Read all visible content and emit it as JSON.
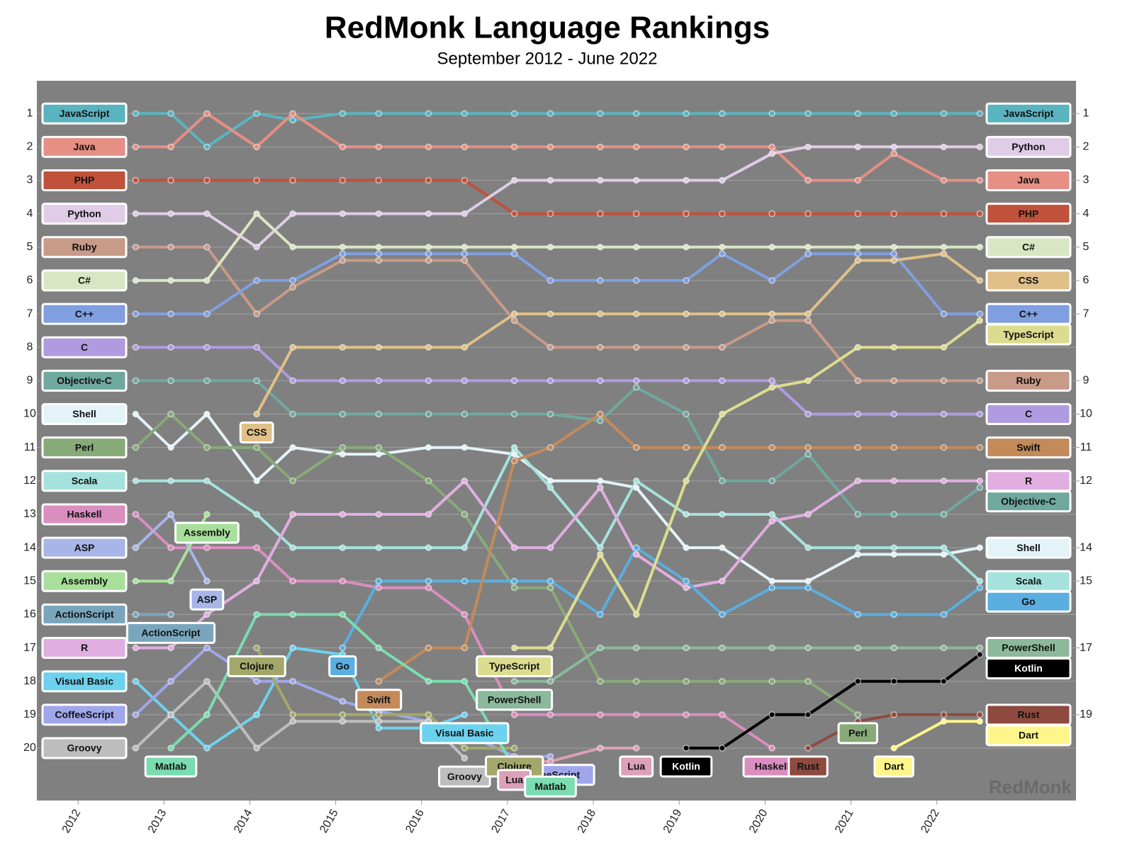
{
  "chart_data": {
    "type": "bump",
    "title": "RedMonk Language Rankings",
    "subtitle": "September 2012 - June 2022",
    "watermark": "RedMonk",
    "x": [
      2012.67,
      2013.08,
      2013.5,
      2014.08,
      2014.5,
      2015.08,
      2015.5,
      2016.08,
      2016.5,
      2017.08,
      2017.5,
      2018.08,
      2018.5,
      2019.08,
      2019.5,
      2020.08,
      2020.5,
      2021.08,
      2021.5,
      2022.08,
      2022.5
    ],
    "xlim": [
      2011.52,
      2023.62
    ],
    "xticks": [
      2012,
      2013,
      2014,
      2015,
      2016,
      2017,
      2018,
      2019,
      2020,
      2021,
      2022
    ],
    "ylim": [
      21.57,
      0.02
    ],
    "yticks": [
      1,
      2,
      3,
      4,
      5,
      6,
      7,
      8,
      9,
      10,
      11,
      12,
      13,
      14,
      15,
      16,
      17,
      18,
      19,
      20
    ],
    "y2lim": [
      21.57,
      0.02
    ],
    "y2ticks": [
      1,
      2,
      3,
      4,
      5,
      6,
      7,
      9,
      10,
      11,
      12,
      14,
      15,
      17,
      19
    ],
    "grid": true,
    "series": [
      {
        "name": "JavaScript",
        "color": "#5ab4c0",
        "values": [
          1,
          1,
          2,
          1,
          1.2,
          1,
          1,
          1,
          1,
          1,
          1,
          1,
          1,
          1,
          1,
          1,
          1,
          1,
          1,
          1,
          1
        ]
      },
      {
        "name": "Java",
        "color": "#e58f85",
        "values": [
          2,
          2,
          1,
          2,
          1,
          2,
          2,
          2,
          2,
          2,
          2,
          2,
          2,
          2,
          2,
          2,
          3,
          3,
          2.2,
          3,
          3
        ]
      },
      {
        "name": "PHP",
        "color": "#c0513a",
        "values": [
          3,
          3,
          3,
          3,
          3,
          3,
          3,
          3,
          3,
          4,
          4,
          4,
          4,
          4,
          4,
          4,
          4,
          4,
          4,
          4,
          4
        ]
      },
      {
        "name": "Python",
        "color": "#e0cce6",
        "values": [
          4,
          4,
          4,
          5,
          4,
          4,
          4,
          4,
          4,
          3,
          3,
          3,
          3,
          3,
          3,
          2.2,
          2,
          2,
          2,
          2,
          2
        ]
      },
      {
        "name": "Ruby",
        "color": "#c89a88",
        "values": [
          5,
          5,
          5,
          7,
          6.2,
          5.4,
          5.4,
          5.4,
          5.4,
          7.2,
          8,
          8,
          8,
          8,
          8,
          7.2,
          7.2,
          9,
          9,
          9,
          9
        ]
      },
      {
        "name": "C#",
        "color": "#d9e6c4",
        "values": [
          6,
          6,
          6,
          4,
          5,
          5,
          5,
          5,
          5,
          5,
          5,
          5,
          5,
          5,
          5,
          5,
          5,
          5,
          5,
          5,
          5
        ]
      },
      {
        "name": "C++",
        "color": "#7f9fe0",
        "values": [
          7,
          7,
          7,
          6,
          6,
          5.2,
          5.2,
          5.2,
          5.2,
          5.2,
          6,
          6,
          6,
          6,
          5.2,
          6,
          5.2,
          5.2,
          5.2,
          7,
          7
        ]
      },
      {
        "name": "C",
        "color": "#b09be0",
        "values": [
          8,
          8,
          8,
          8,
          9,
          9,
          9,
          9,
          9,
          9,
          9,
          9,
          9,
          9,
          9,
          9,
          10,
          10,
          10,
          10,
          10
        ]
      },
      {
        "name": "Objective-C",
        "color": "#6fa89e",
        "values": [
          9,
          9,
          9,
          9,
          10,
          10,
          10,
          10,
          10,
          10,
          10,
          10.2,
          9.2,
          10,
          12,
          12,
          11.2,
          13,
          13,
          13,
          12.2
        ]
      },
      {
        "name": "Shell",
        "color": "#e3f3f8",
        "values": [
          10,
          11,
          10,
          12,
          11,
          11.2,
          11.2,
          11,
          11,
          11.2,
          12,
          12,
          12.2,
          14,
          14,
          15,
          15,
          14.2,
          14.2,
          14.2,
          14
        ]
      },
      {
        "name": "Perl",
        "color": "#88aa78",
        "values": [
          11,
          10,
          11,
          11,
          12,
          11,
          11,
          12,
          13,
          15.2,
          15.2,
          18,
          18,
          18,
          18,
          18,
          18,
          19,
          null,
          null,
          null
        ]
      },
      {
        "name": "Scala",
        "color": "#a5e2dd",
        "values": [
          12,
          12,
          12,
          13,
          14,
          14,
          14,
          14,
          14,
          11,
          12.2,
          14,
          12,
          13,
          13,
          13,
          14,
          14,
          14,
          14,
          15
        ]
      },
      {
        "name": "Haskell",
        "color": "#da8ec0",
        "values": [
          13,
          14,
          14,
          14,
          15,
          15,
          15.2,
          15.2,
          16,
          19,
          19,
          19,
          19,
          19,
          19,
          20,
          null,
          null,
          null,
          null,
          null
        ]
      },
      {
        "name": "ASP",
        "color": "#a7b5e8",
        "values": [
          14,
          13,
          15,
          null,
          null,
          null,
          null,
          null,
          null,
          null,
          null,
          null,
          null,
          null,
          null,
          null,
          null,
          null,
          null,
          null,
          null
        ]
      },
      {
        "name": "Assembly",
        "color": "#a8e09b",
        "values": [
          15,
          15,
          13,
          null,
          null,
          null,
          null,
          null,
          null,
          null,
          null,
          null,
          null,
          null,
          null,
          null,
          null,
          null,
          null,
          null,
          null
        ]
      },
      {
        "name": "ActionScript",
        "color": "#7aa6bd",
        "values": [
          16,
          16,
          null,
          null,
          null,
          null,
          null,
          null,
          null,
          null,
          null,
          null,
          null,
          null,
          null,
          null,
          null,
          null,
          null,
          null,
          null
        ]
      },
      {
        "name": "R",
        "color": "#e0aee0",
        "values": [
          17,
          17,
          16,
          15,
          13,
          13,
          13,
          13,
          12,
          14,
          14,
          12.2,
          14.2,
          15.2,
          15,
          13.2,
          13,
          12,
          12,
          12,
          12
        ]
      },
      {
        "name": "Visual Basic",
        "color": "#6cd2ee",
        "values": [
          18,
          19,
          20,
          19,
          17,
          17.2,
          19.4,
          19.4,
          19,
          null,
          null,
          null,
          null,
          null,
          null,
          null,
          null,
          null,
          null,
          null,
          null
        ]
      },
      {
        "name": "CoffeeScript",
        "color": "#a0a6ea",
        "values": [
          19,
          18,
          17,
          18,
          18,
          18.6,
          18.9,
          19.2,
          19.55,
          20.25,
          20.25,
          null,
          null,
          null,
          null,
          null,
          null,
          null,
          null,
          null,
          null
        ]
      },
      {
        "name": "Groovy",
        "color": "#bdbdbd",
        "values": [
          20,
          19,
          18,
          20,
          19.2,
          19.2,
          19.2,
          19.2,
          20.3,
          null,
          null,
          null,
          null,
          null,
          null,
          null,
          null,
          null,
          null,
          null,
          null
        ]
      },
      {
        "name": "CSS",
        "color": "#e0c088",
        "values": [
          null,
          null,
          null,
          10,
          8,
          8,
          8,
          8,
          8,
          7,
          7,
          7,
          7,
          7,
          7,
          7,
          7,
          5.4,
          5.4,
          5.2,
          6
        ]
      },
      {
        "name": "Clojure",
        "color": "#a3a86a",
        "values": [
          null,
          null,
          null,
          17,
          19,
          19,
          19,
          19,
          20,
          20,
          null,
          null,
          null,
          null,
          null,
          null,
          null,
          null,
          null,
          null,
          null
        ]
      },
      {
        "name": "Go",
        "color": "#5aaee0",
        "values": [
          null,
          null,
          null,
          null,
          null,
          17,
          15,
          15,
          15,
          15,
          15,
          16,
          14,
          15,
          16,
          15.2,
          15.2,
          16,
          16,
          16,
          15.2
        ]
      },
      {
        "name": "Swift",
        "color": "#c48a5a",
        "values": [
          null,
          null,
          null,
          null,
          null,
          null,
          18,
          17,
          17,
          11.4,
          11,
          10,
          11,
          11,
          11,
          11,
          11,
          11,
          11,
          11,
          11
        ]
      },
      {
        "name": "TypeScript",
        "color": "#dcdc90",
        "values": [
          null,
          null,
          null,
          null,
          null,
          null,
          null,
          null,
          null,
          17,
          17,
          14.2,
          16,
          12,
          10,
          9.2,
          9,
          8,
          8,
          8,
          7.2
        ]
      },
      {
        "name": "PowerShell",
        "color": "#8cb89c",
        "values": [
          null,
          null,
          null,
          null,
          null,
          null,
          null,
          null,
          null,
          18,
          18,
          17,
          17,
          17,
          17,
          17,
          17,
          17,
          17,
          17,
          17
        ]
      },
      {
        "name": "Lua",
        "color": "#dca0b8",
        "values": [
          null,
          null,
          null,
          null,
          null,
          null,
          null,
          null,
          null,
          20.4,
          20.4,
          20,
          20,
          null,
          null,
          null,
          null,
          null,
          null,
          null,
          null
        ]
      },
      {
        "name": "Matlab",
        "color": "#7adcb0",
        "values": [
          null,
          20,
          19,
          16,
          16,
          16,
          17,
          18,
          18,
          20.6,
          20.6,
          null,
          null,
          null,
          null,
          null,
          null,
          null,
          null,
          null,
          null
        ]
      },
      {
        "name": "Kotlin",
        "color": "#000000",
        "values": [
          null,
          null,
          null,
          null,
          null,
          null,
          null,
          null,
          null,
          null,
          null,
          null,
          null,
          20,
          20,
          19,
          19,
          18,
          18,
          18,
          17.2
        ]
      },
      {
        "name": "Rust",
        "color": "#8e4a3f",
        "values": [
          null,
          null,
          null,
          null,
          null,
          null,
          null,
          null,
          null,
          null,
          null,
          null,
          null,
          null,
          null,
          null,
          20,
          19.2,
          19,
          19,
          19
        ]
      },
      {
        "name": "Dart",
        "color": "#fff58a",
        "values": [
          null,
          null,
          null,
          null,
          null,
          null,
          null,
          null,
          null,
          null,
          null,
          null,
          null,
          null,
          null,
          null,
          null,
          null,
          20,
          19.2,
          19.2
        ]
      }
    ]
  }
}
